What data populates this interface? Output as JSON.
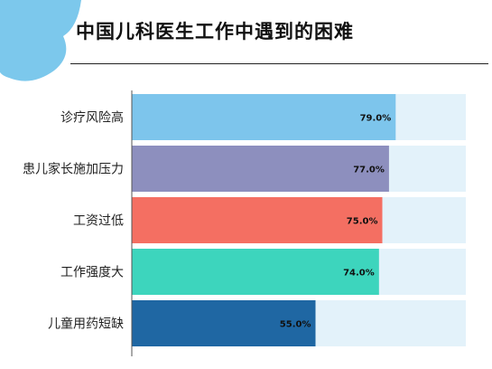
{
  "colors": {
    "track": "#e3f2fa",
    "axis": "#555555",
    "blob": "#7cc8ec"
  },
  "chart_data": {
    "type": "bar",
    "orientation": "horizontal",
    "title": "中国儿科医生工作中遇到的困难",
    "categories": [
      "诊疗风险高",
      "患儿家长施加压力",
      "工资过低",
      "工作强度大",
      "儿童用药短缺"
    ],
    "values": [
      79.0,
      77.0,
      75.0,
      74.0,
      55.0
    ],
    "value_labels": [
      "79.0%",
      "77.0%",
      "75.0%",
      "74.0%",
      "55.0%"
    ],
    "bar_colors": [
      "#7dc5ec",
      "#8d8fbe",
      "#f46f62",
      "#3dd5bd",
      "#1f67a3"
    ],
    "xlim": [
      0,
      100
    ],
    "legend": "none",
    "grid": false
  }
}
